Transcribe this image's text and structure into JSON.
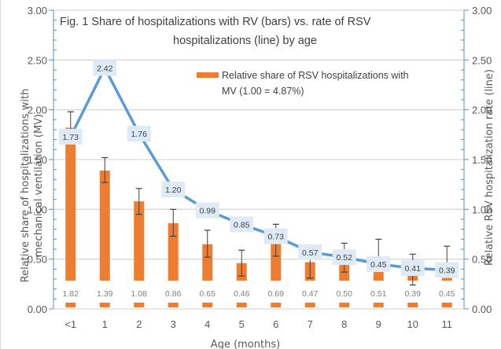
{
  "chart_data": {
    "type": "bar",
    "title": "Fig. 1  Share of hospitalizations with RV (bars) vs. rate  of RSV hospitalizations (line) by age",
    "title_lines": [
      "Fig. 1  Share of hospitalizations with RV (bars) vs. rate  of RSV",
      "hospitalizations (line) by age"
    ],
    "xlabel": "Age  (months)",
    "ylabel_left_lines": [
      "Relative share of hospitalizations with",
      "mechanical ventilation (MV)"
    ],
    "ylabel_right": "Relative RSV hospitalization rate (line)",
    "ylim_left": [
      0,
      3
    ],
    "ylim_right": [
      0,
      3
    ],
    "yticks": [
      "0.00",
      "0.50",
      "1.00",
      "1.50",
      "2.00",
      "2.50",
      "3.00"
    ],
    "ytick_values": [
      0,
      0.5,
      1.0,
      1.5,
      2.0,
      2.5,
      3.0
    ],
    "grid": true,
    "categories": [
      "<1",
      "1",
      "2",
      "3",
      "4",
      "5",
      "6",
      "7",
      "8",
      "9",
      "10",
      "11"
    ],
    "series": [
      {
        "name": "Relative share of RSV hospitalizations with MV (1.00 = 4.87%)",
        "kind": "bar",
        "axis": "left",
        "color": "#ed7d31",
        "values": [
          1.82,
          1.39,
          1.08,
          0.86,
          0.65,
          0.46,
          0.69,
          0.47,
          0.5,
          0.51,
          0.39,
          0.45
        ],
        "labels": [
          "1.82",
          "1.39",
          "1.08",
          "0.86",
          "0.65",
          "0.46",
          "0.69",
          "0.47",
          "0.50",
          "0.51",
          "0.39",
          "0.45"
        ],
        "error_upper": [
          1.98,
          1.52,
          1.21,
          1.0,
          0.79,
          0.59,
          0.85,
          0.64,
          0.66,
          0.7,
          0.55,
          0.63
        ],
        "error_lower": [
          1.66,
          1.27,
          0.95,
          0.73,
          0.52,
          0.33,
          0.53,
          0.31,
          0.37,
          0.41,
          0.24,
          0.33
        ]
      },
      {
        "name": "Relative RSV hospitalization rate",
        "kind": "line",
        "axis": "right",
        "color": "#5b9bd5",
        "values": [
          1.73,
          2.42,
          1.76,
          1.2,
          0.99,
          0.85,
          0.73,
          0.57,
          0.52,
          0.45,
          0.41,
          0.39
        ],
        "labels": [
          "1.73",
          "2.42",
          "1.76",
          "1.20",
          "0.99",
          "0.85",
          "0.73",
          "0.57",
          "0.52",
          "0.45",
          "0.41",
          "0.39"
        ]
      }
    ],
    "legend": {
      "position": "top-right-inside",
      "entries": [
        "Relative share of RSV hospitalizations with",
        "MV (1.00 = 4.87%)"
      ]
    }
  }
}
